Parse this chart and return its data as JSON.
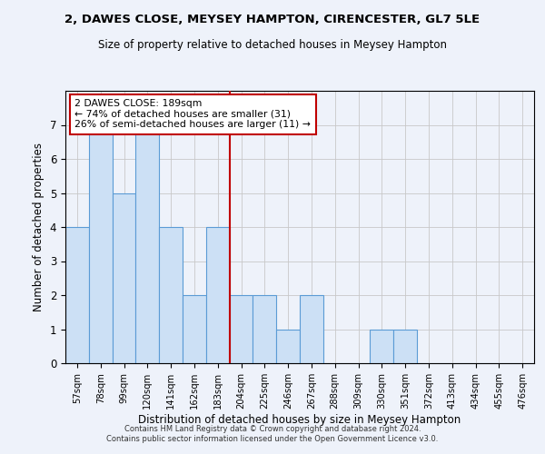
{
  "title": "2, DAWES CLOSE, MEYSEY HAMPTON, CIRENCESTER, GL7 5LE",
  "subtitle": "Size of property relative to detached houses in Meysey Hampton",
  "xlabel": "Distribution of detached houses by size in Meysey Hampton",
  "ylabel": "Number of detached properties",
  "footer_line1": "Contains HM Land Registry data © Crown copyright and database right 2024.",
  "footer_line2": "Contains public sector information licensed under the Open Government Licence v3.0.",
  "bin_labels": [
    "57sqm",
    "78sqm",
    "99sqm",
    "120sqm",
    "141sqm",
    "162sqm",
    "183sqm",
    "204sqm",
    "225sqm",
    "246sqm",
    "267sqm",
    "288sqm",
    "309sqm",
    "330sqm",
    "351sqm",
    "372sqm",
    "413sqm",
    "434sqm",
    "455sqm",
    "476sqm"
  ],
  "bar_values": [
    4,
    7,
    5,
    7,
    4,
    2,
    4,
    2,
    2,
    1,
    2,
    0,
    0,
    1,
    1,
    0,
    0,
    0,
    0,
    0
  ],
  "bar_color": "#cce0f5",
  "bar_edge_color": "#5b9bd5",
  "reference_line_x": 6,
  "reference_line_color": "#c00000",
  "annotation_box_text": "2 DAWES CLOSE: 189sqm\n← 74% of detached houses are smaller (31)\n26% of semi-detached houses are larger (11) →",
  "ylim": [
    0,
    8
  ],
  "yticks": [
    0,
    1,
    2,
    3,
    4,
    5,
    6,
    7
  ],
  "background_color": "#eef2fa",
  "plot_background": "#eef2fa",
  "grid_color": "#c8c8c8"
}
